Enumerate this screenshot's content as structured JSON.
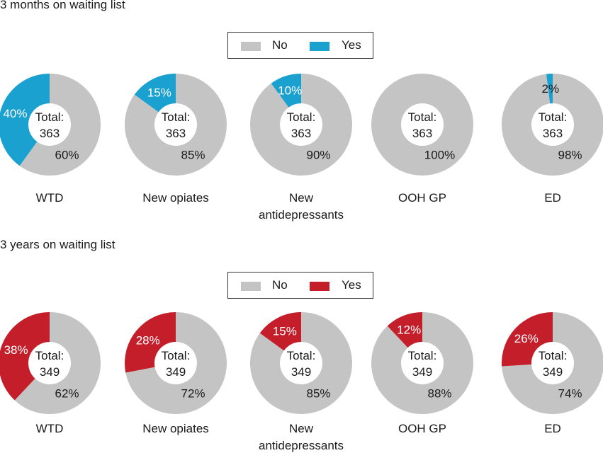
{
  "colors": {
    "no": "#c4c4c4",
    "yes_panel1": "#1ba1cf",
    "yes_panel2": "#c41e2a"
  },
  "chart_data": [
    {
      "type": "pie",
      "title": "3 months on waiting list",
      "legend": [
        "No",
        "Yes"
      ],
      "total_label": "Total:",
      "charts": [
        {
          "category": "WTD",
          "total": "363",
          "yes": 40,
          "no": 60,
          "yes_label": "40%",
          "no_label": "60%"
        },
        {
          "category": "New opiates",
          "total": "363",
          "yes": 15,
          "no": 85,
          "yes_label": "15%",
          "no_label": "85%"
        },
        {
          "category": "New antidepressants",
          "category_lines": [
            "New",
            "antidepressants"
          ],
          "total": "363",
          "yes": 10,
          "no": 90,
          "yes_label": "10%",
          "no_label": "90%"
        },
        {
          "category": "OOH GP",
          "total": "363",
          "yes": 0,
          "no": 100,
          "yes_label": "",
          "no_label": "100%"
        },
        {
          "category": "ED",
          "total": "363",
          "yes": 2,
          "no": 98,
          "yes_label": "2%",
          "no_label": "98%"
        }
      ]
    },
    {
      "type": "pie",
      "title": "3 years on waiting list",
      "legend": [
        "No",
        "Yes"
      ],
      "total_label": "Total:",
      "charts": [
        {
          "category": "WTD",
          "total": "349",
          "yes": 38,
          "no": 62,
          "yes_label": "38%",
          "no_label": "62%"
        },
        {
          "category": "New opiates",
          "total": "349",
          "yes": 28,
          "no": 72,
          "yes_label": "28%",
          "no_label": "72%"
        },
        {
          "category": "New antidepressants",
          "category_lines": [
            "New",
            "antidepressants"
          ],
          "total": "349",
          "yes": 15,
          "no": 85,
          "yes_label": "15%",
          "no_label": "85%"
        },
        {
          "category": "OOH GP",
          "total": "349",
          "yes": 12,
          "no": 88,
          "yes_label": "12%",
          "no_label": "88%"
        },
        {
          "category": "ED",
          "total": "349",
          "yes": 26,
          "no": 74,
          "yes_label": "26%",
          "no_label": "74%"
        }
      ]
    }
  ]
}
